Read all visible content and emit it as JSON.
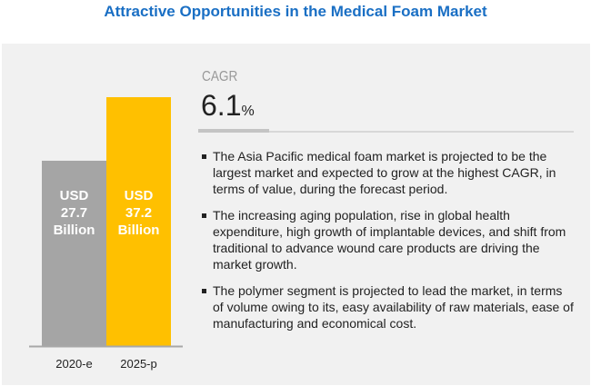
{
  "title": "Attractive Opportunities in the Medical Foam Market",
  "cagr": {
    "label": "CAGR",
    "value": "6.1",
    "unit": "%"
  },
  "bullets": [
    "The Asia Pacific medical foam market is projected to be the largest market and expected to grow at the highest CAGR, in terms of value, during the forecast period.",
    "The increasing aging population, rise in global health expenditure, high growth of implantable devices, and shift from traditional to advance wound care products are driving the market growth.",
    "The polymer segment is projected to lead the market, in terms of volume owing to its, easy availability of raw materials, ease of manufacturing and economical cost."
  ],
  "chart_data": {
    "type": "bar",
    "title": "",
    "categories": [
      "2020-e",
      "2025-p"
    ],
    "values": [
      27.7,
      37.2
    ],
    "labels": [
      [
        "USD",
        "27.7",
        "Billion"
      ],
      [
        "USD",
        "37.2",
        "Billion"
      ]
    ],
    "colors": [
      "#a5a5a5",
      "#ffc000"
    ],
    "unit": "USD Billion",
    "ylim": [
      0,
      37.2
    ],
    "xlabel": "",
    "ylabel": ""
  }
}
